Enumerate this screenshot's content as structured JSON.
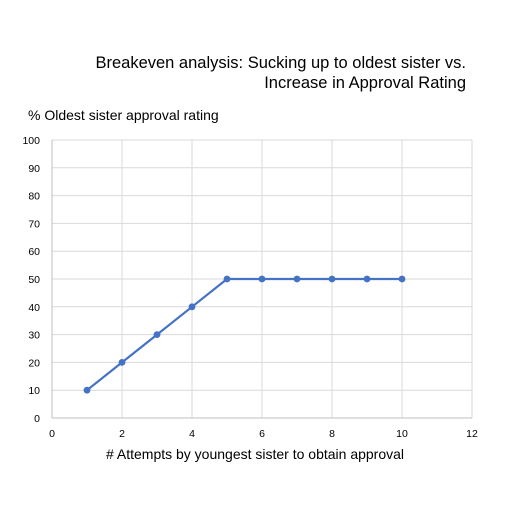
{
  "chart_data": {
    "type": "line",
    "title": [
      "Breakeven analysis: Sucking up to oldest sister vs.",
      "Increase in Approval Rating"
    ],
    "xlabel": "# Attempts by youngest sister to obtain approval",
    "ylabel": "% Oldest sister approval rating",
    "xlim": [
      0,
      12
    ],
    "ylim": [
      0,
      100
    ],
    "xticks": [
      "0",
      "2",
      "4",
      "6",
      "8",
      "10",
      "12"
    ],
    "yticks": [
      "0",
      "10",
      "20",
      "30",
      "40",
      "50",
      "60",
      "70",
      "80",
      "90",
      "100"
    ],
    "grid": true,
    "series": [
      {
        "x": [
          1,
          2,
          3,
          4,
          5,
          6,
          7,
          8,
          9,
          10
        ],
        "y": [
          10,
          20,
          30,
          40,
          50,
          50,
          50,
          50,
          50,
          50
        ],
        "color": "#4472C4"
      }
    ]
  }
}
